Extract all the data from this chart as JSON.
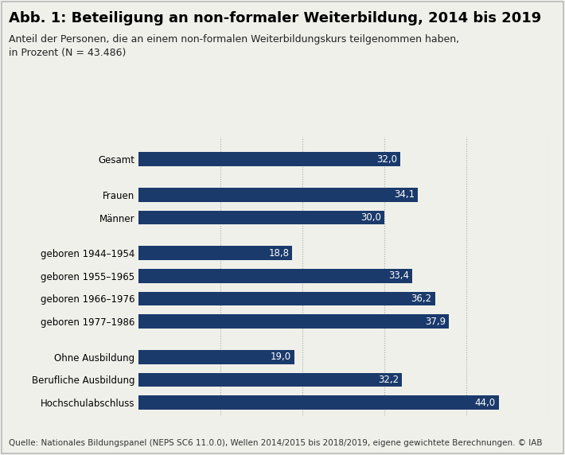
{
  "title": "Abb. 1: Beteiligung an non-formaler Weiterbildung, 2014 bis 2019",
  "subtitle_line1": "Anteil der Personen, die an einem non-formalen Weiterbildungskurs teilgenommen haben,",
  "subtitle_line2": "in Prozent (N = 43.486)",
  "categories": [
    "Gesamt",
    "Frauen",
    "Männer",
    "geboren 1944–1954",
    "geboren 1955–1965",
    "geboren 1966–1976",
    "geboren 1977–1986",
    "Ohne Ausbildung",
    "Berufliche Ausbildung",
    "Hochschulabschluss"
  ],
  "values": [
    32.0,
    34.1,
    30.0,
    18.8,
    33.4,
    36.2,
    37.9,
    19.0,
    32.2,
    44.0
  ],
  "bar_color": "#1a3a6b",
  "label_color": "#ffffff",
  "background_color": "#f0f0eb",
  "border_color": "#bbbbbb",
  "title_fontsize": 13,
  "subtitle_fontsize": 9,
  "label_fontsize": 8.5,
  "tick_fontsize": 8.5,
  "footer_text": "Quelle: Nationales Bildungspanel (NEPS SC6 11.0.0), Wellen 2014/2015 bis 2018/2019, eigene gewichtete Berechnungen. © IAB",
  "footer_fontsize": 7.5,
  "xlim": [
    0,
    50
  ],
  "groups": [
    [
      0
    ],
    [
      1,
      2
    ],
    [
      3,
      4,
      5,
      6
    ],
    [
      7,
      8,
      9
    ]
  ]
}
